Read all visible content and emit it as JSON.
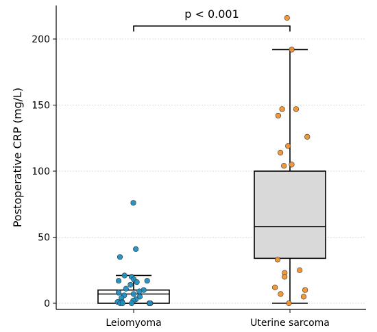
{
  "chart_data": {
    "type": "box",
    "title": "",
    "xlabel": "",
    "ylabel": "Postoperative CRP (mg/L)",
    "ylim": [
      -5,
      225
    ],
    "yticks": [
      0,
      50,
      100,
      150,
      200
    ],
    "grid": "horizontal dotted",
    "categories": [
      "Leiomyoma",
      "Uterine sarcoma"
    ],
    "boxes": [
      {
        "category": "Leiomyoma",
        "whisker_low": 0,
        "q1": 0,
        "median": 7,
        "q3": 10,
        "whisker_high": 21,
        "point_color": "#1f8fc1",
        "box_fill": "#ffffff",
        "points": [
          76,
          41,
          35,
          21,
          20,
          18,
          17,
          17,
          16,
          14,
          11,
          10,
          9,
          8,
          7,
          6,
          5,
          4,
          3,
          2,
          1,
          1,
          0,
          0,
          0,
          0,
          0,
          0
        ]
      },
      {
        "category": "Uterine sarcoma",
        "whisker_low": 0,
        "q1": 34,
        "median": 58,
        "q3": 100,
        "whisker_high": 192,
        "point_color": "#f0922e",
        "box_fill": "#d9d9d9",
        "points": [
          216,
          192,
          147,
          147,
          142,
          126,
          119,
          114,
          105,
          104,
          33,
          25,
          23,
          20,
          12,
          10,
          7,
          5,
          0
        ]
      }
    ],
    "annotation": {
      "text": "p < 0.001",
      "from": "Leiomyoma",
      "to": "Uterine sarcoma"
    }
  }
}
